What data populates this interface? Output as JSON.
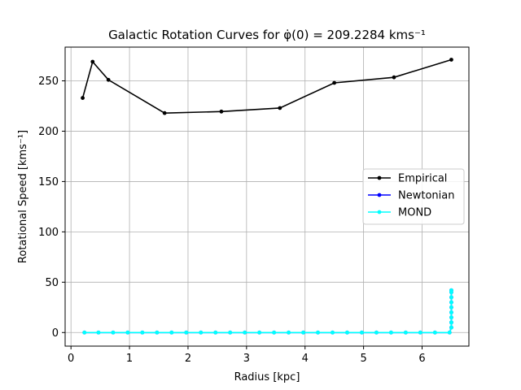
{
  "chart_data": {
    "type": "line",
    "title": "Galactic Rotation Curves for φ̇(0) = 209.2284 kms⁻¹",
    "xlabel": "Radius [kpc]",
    "ylabel": "Rotational Speed [kms⁻¹]",
    "xlim": [
      -0.1,
      6.8
    ],
    "ylim": [
      -13.5,
      283.5
    ],
    "xticks": [
      0,
      1,
      2,
      3,
      4,
      5,
      6
    ],
    "yticks": [
      0,
      50,
      100,
      150,
      200,
      250
    ],
    "grid": true,
    "legend_position": "center-right",
    "series": [
      {
        "name": "Empirical",
        "color": "#000000",
        "x": [
          0.2,
          0.37,
          0.64,
          1.6,
          2.57,
          3.57,
          4.5,
          5.52,
          6.5
        ],
        "y": [
          233,
          269,
          251,
          218,
          219.5,
          223,
          248,
          253.5,
          271
        ]
      },
      {
        "name": "Newtonian",
        "color": "#0000ff",
        "x": [
          0.23,
          0.47,
          0.72,
          0.97,
          1.22,
          1.47,
          1.72,
          1.97,
          2.22,
          2.47,
          2.72,
          2.97,
          3.22,
          3.47,
          3.72,
          3.97,
          4.22,
          4.47,
          4.72,
          4.97,
          5.22,
          5.47,
          5.72,
          5.97,
          6.22,
          6.47,
          6.5,
          6.5,
          6.5,
          6.5,
          6.5,
          6.5,
          6.5,
          6.5,
          6.5
        ],
        "y": [
          0,
          0,
          0,
          0,
          0,
          0,
          0,
          0,
          0,
          0,
          0,
          0,
          0,
          0,
          0,
          0,
          0,
          0,
          0,
          0,
          0,
          0,
          0,
          0,
          0,
          0,
          5,
          10,
          15,
          20,
          25,
          30,
          35,
          40,
          42
        ]
      },
      {
        "name": "MOND",
        "color": "#00ffff",
        "x": [
          0.23,
          0.47,
          0.72,
          0.97,
          1.22,
          1.47,
          1.72,
          1.97,
          2.22,
          2.47,
          2.72,
          2.97,
          3.22,
          3.47,
          3.72,
          3.97,
          4.22,
          4.47,
          4.72,
          4.97,
          5.22,
          5.47,
          5.72,
          5.97,
          6.22,
          6.47,
          6.5,
          6.5,
          6.5,
          6.5,
          6.5,
          6.5,
          6.5,
          6.5,
          6.5
        ],
        "y": [
          0,
          0,
          0,
          0,
          0,
          0,
          0,
          0,
          0,
          0,
          0,
          0,
          0,
          0,
          0,
          0,
          0,
          0,
          0,
          0,
          0,
          0,
          0,
          0,
          0,
          0,
          5,
          10,
          15,
          20,
          25,
          30,
          35,
          40,
          42
        ]
      }
    ]
  }
}
